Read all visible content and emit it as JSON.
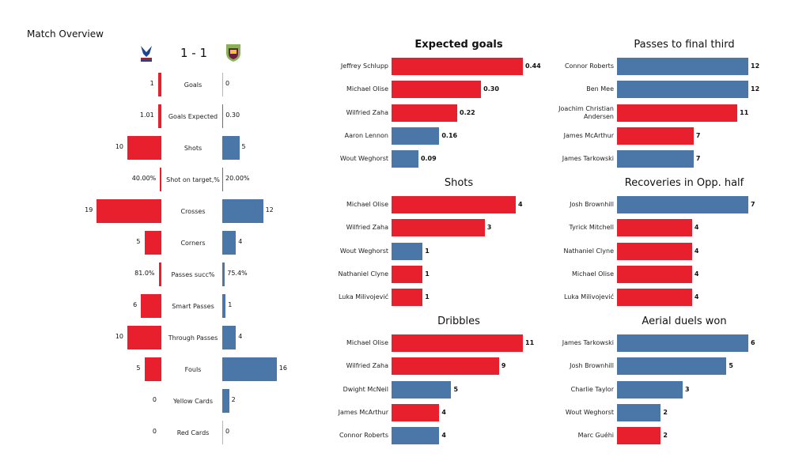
{
  "page_title": "Match Overview",
  "score": "1 - 1",
  "colors": {
    "home": "#e8202e",
    "away": "#4a76a8"
  },
  "icons": {
    "home_crest": "eagle-crest-icon",
    "away_crest": "shield-crest-icon"
  },
  "chart_data": [
    {
      "type": "bar",
      "orientation": "diverging-horizontal",
      "title": "Match Overview",
      "categories": [
        "Goals",
        "Goals Expected",
        "Shots",
        "Shot on target,%",
        "Crosses",
        "Corners",
        "Passes succ%",
        "Smart Passes",
        "Through Passes",
        "Fouls",
        "Yellow Cards",
        "Red Cards"
      ],
      "home_values": [
        1,
        1.01,
        10,
        0.4,
        19,
        5,
        0.81,
        6,
        10,
        5,
        0,
        0
      ],
      "away_values": [
        0,
        0.3,
        5,
        0.2,
        12,
        4,
        0.754,
        1,
        4,
        16,
        2,
        0
      ],
      "home_labels": [
        "1",
        "1.01",
        "10",
        "40.00%",
        "19",
        "5",
        "81.0%",
        "6",
        "10",
        "5",
        "0",
        "0"
      ],
      "away_labels": [
        "0",
        "0.30",
        "5",
        "20.00%",
        "12",
        "4",
        "75.4%",
        "1",
        "4",
        "16",
        "2",
        "0"
      ]
    },
    {
      "type": "bar",
      "title": "Expected goals",
      "bold_title": true,
      "categories": [
        "Jeffrey  Schlupp",
        "Michael Olise",
        "Wilfried Zaha",
        "Aaron  Lennon",
        "Wout Weghorst"
      ],
      "values": [
        0.44,
        0.3,
        0.22,
        0.16,
        0.09
      ],
      "labels": [
        "0.44",
        "0.30",
        "0.22",
        "0.16",
        "0.09"
      ],
      "teams": [
        "home",
        "home",
        "home",
        "away",
        "away"
      ]
    },
    {
      "type": "bar",
      "title": "Shots",
      "categories": [
        "Michael Olise",
        "Wilfried Zaha",
        "Wout Weghorst",
        "Nathaniel Clyne",
        "Luka Milivojević"
      ],
      "values": [
        4,
        3,
        1,
        1,
        1
      ],
      "labels": [
        "4",
        "3",
        "1",
        "1",
        "1"
      ],
      "teams": [
        "home",
        "home",
        "away",
        "home",
        "home"
      ]
    },
    {
      "type": "bar",
      "title": "Dribbles",
      "categories": [
        "Michael Olise",
        "Wilfried Zaha",
        "Dwight McNeil",
        "James McArthur",
        "Connor Roberts"
      ],
      "values": [
        11,
        9,
        5,
        4,
        4
      ],
      "labels": [
        "11",
        "9",
        "5",
        "4",
        "4"
      ],
      "teams": [
        "home",
        "home",
        "away",
        "home",
        "away"
      ]
    },
    {
      "type": "bar",
      "title": "Passes to final third",
      "categories": [
        "Connor Roberts",
        "Ben Mee",
        "Joachim Christian\nAndersen",
        "James McArthur",
        "James  Tarkowski"
      ],
      "values": [
        12,
        12,
        11,
        7,
        7
      ],
      "labels": [
        "12",
        "12",
        "11",
        "7",
        "7"
      ],
      "teams": [
        "away",
        "away",
        "home",
        "home",
        "away"
      ]
    },
    {
      "type": "bar",
      "title": "Recoveries in Opp. half",
      "categories": [
        "Josh Brownhill",
        "Tyrick Mitchell",
        "Nathaniel Clyne",
        "Michael Olise",
        "Luka Milivojević"
      ],
      "values": [
        7,
        4,
        4,
        4,
        4
      ],
      "labels": [
        "7",
        "4",
        "4",
        "4",
        "4"
      ],
      "teams": [
        "away",
        "home",
        "home",
        "home",
        "home"
      ]
    },
    {
      "type": "bar",
      "title": "Aerial duels won",
      "categories": [
        "James  Tarkowski",
        "Josh Brownhill",
        "Charlie Taylor",
        "Wout Weghorst",
        "Marc Guéhi"
      ],
      "values": [
        6,
        5,
        3,
        2,
        2
      ],
      "labels": [
        "6",
        "5",
        "3",
        "2",
        "2"
      ],
      "teams": [
        "away",
        "away",
        "away",
        "away",
        "home"
      ]
    }
  ]
}
